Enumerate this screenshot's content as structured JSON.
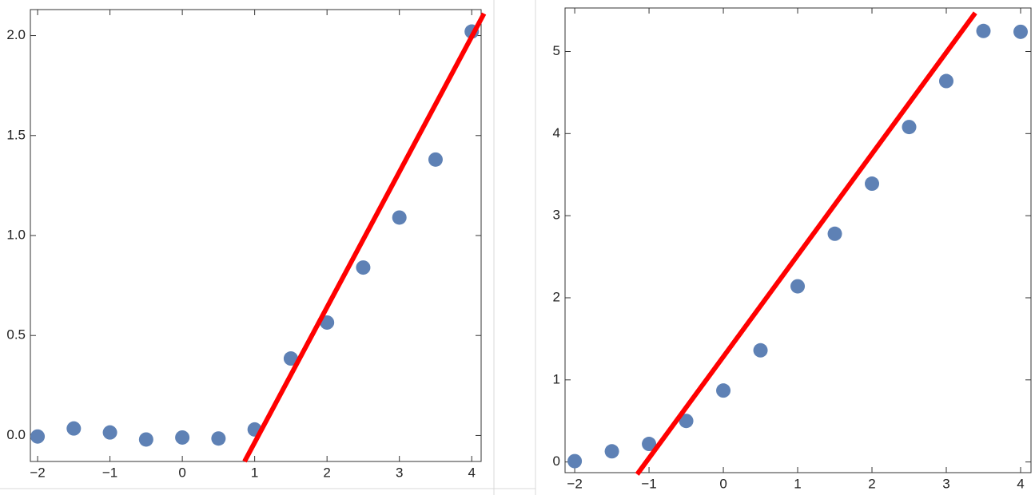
{
  "chart_data": [
    {
      "type": "scatter",
      "xlim": [
        -2.1,
        4.13
      ],
      "ylim": [
        -0.13,
        2.13
      ],
      "xticks": [
        {
          "value": -2,
          "label": "−2"
        },
        {
          "value": -1,
          "label": "−1"
        },
        0,
        1,
        2,
        3,
        4
      ],
      "yticks": [
        {
          "value": 0,
          "label": "0.0"
        },
        {
          "value": 0.5,
          "label": "0.5"
        },
        {
          "value": 1,
          "label": "1.0"
        },
        {
          "value": 1.5,
          "label": "1.5"
        },
        {
          "value": 2,
          "label": "2.0"
        }
      ],
      "series": [
        {
          "type": "scatter",
          "color": "#5e81b5",
          "x": [
            -2,
            -1.5,
            -1,
            -0.5,
            0,
            0.5,
            1,
            1.5,
            2,
            2.5,
            3,
            3.5,
            4
          ],
          "values": [
            -0.005,
            0.035,
            0.015,
            -0.02,
            -0.01,
            -0.015,
            0.03,
            0.385,
            0.565,
            0.84,
            1.09,
            1.38,
            2.02
          ]
        },
        {
          "type": "line",
          "color": "#ff0000",
          "x": [
            0.86,
            4.17
          ],
          "values": [
            -0.13,
            2.11
          ]
        }
      ]
    },
    {
      "type": "scatter",
      "xlim": [
        -2.13,
        4.14
      ],
      "ylim": [
        -0.13,
        5.53
      ],
      "xticks": [
        {
          "value": -2,
          "label": "−2"
        },
        {
          "value": -1,
          "label": "−1"
        },
        0,
        1,
        2,
        3,
        4
      ],
      "yticks": [
        0,
        1,
        2,
        3,
        4,
        5
      ],
      "series": [
        {
          "type": "scatter",
          "color": "#5e81b5",
          "x": [
            -2,
            -1.5,
            -1,
            -0.5,
            0,
            0.5,
            1,
            1.5,
            2,
            2.5,
            3,
            3.5,
            4
          ],
          "values": [
            0.01,
            0.13,
            0.22,
            0.5,
            0.87,
            1.36,
            2.14,
            2.78,
            3.39,
            4.08,
            4.64,
            5.25,
            5.24
          ]
        },
        {
          "type": "line",
          "color": "#ff0000",
          "x": [
            -1.16,
            3.39
          ],
          "values": [
            -0.15,
            5.47
          ]
        }
      ]
    }
  ]
}
